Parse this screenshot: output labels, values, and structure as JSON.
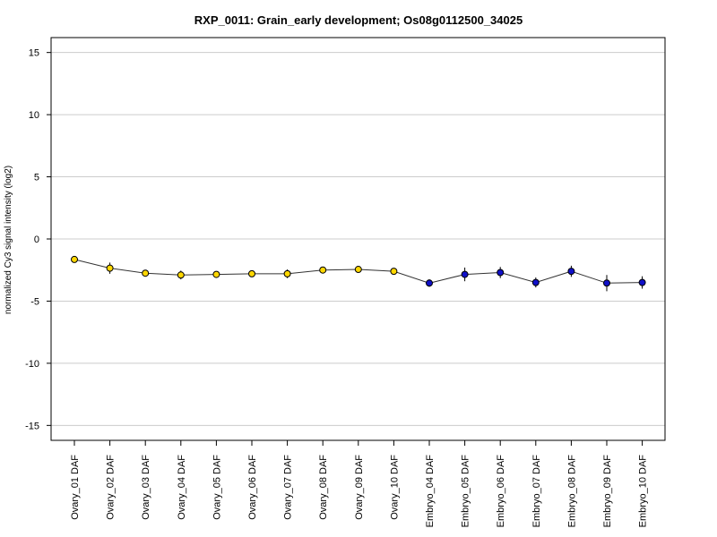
{
  "chart_data": {
    "type": "line",
    "title": "RXP_0011: Grain_early development; Os08g0112500_34025",
    "xlabel": "",
    "ylabel": "normalized Cy3 signal intensity (log2)",
    "ylim": [
      -16.2,
      16.2
    ],
    "yticks": [
      -15,
      -10,
      -5,
      0,
      5,
      10,
      15
    ],
    "grid": true,
    "categories": [
      "Ovary_01 DAF",
      "Ovary_02 DAF",
      "Ovary_03 DAF",
      "Ovary_04 DAF",
      "Ovary_05 DAF",
      "Ovary_06 DAF",
      "Ovary_07 DAF",
      "Ovary_08 DAF",
      "Ovary_09 DAF",
      "Ovary_10 DAF",
      "Embryo_04 DAF",
      "Embryo_05 DAF",
      "Embryo_06 DAF",
      "Embryo_07 DAF",
      "Embryo_08 DAF",
      "Embryo_09 DAF",
      "Embryo_10 DAF"
    ],
    "values": [
      -1.65,
      -2.35,
      -2.75,
      -2.9,
      -2.85,
      -2.8,
      -2.8,
      -2.5,
      -2.45,
      -2.6,
      -3.55,
      -2.85,
      -2.7,
      -3.5,
      -2.6,
      -3.55,
      -3.5
    ],
    "error": [
      0.15,
      0.45,
      0.15,
      0.35,
      0.15,
      0.15,
      0.35,
      0.15,
      0.15,
      0.15,
      0.3,
      0.55,
      0.45,
      0.4,
      0.45,
      0.65,
      0.5
    ],
    "point_colors": [
      "#ffd700",
      "#ffd700",
      "#ffd700",
      "#ffd700",
      "#ffd700",
      "#ffd700",
      "#ffd700",
      "#ffd700",
      "#ffd700",
      "#ffd700",
      "#1010c8",
      "#1010c8",
      "#1010c8",
      "#1010c8",
      "#1010c8",
      "#1010c8",
      "#1010c8"
    ],
    "line_color": "#333333",
    "grid_color": "#cccccc"
  }
}
